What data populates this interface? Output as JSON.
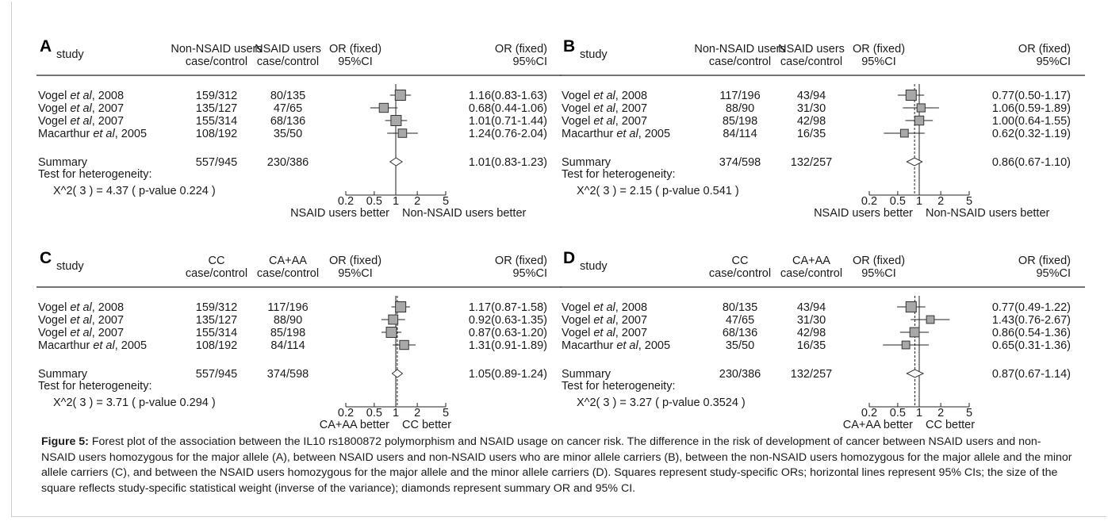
{
  "colors": {
    "box_fill": "#a8a8a8",
    "box_stroke": "#333333",
    "line": "#222222",
    "diamond_fill": "#ffffff"
  },
  "chart_data": [
    {
      "type": "forest",
      "panel": "A",
      "headers": {
        "study": "study",
        "col1a": "Non-NSAID users",
        "col1b": "case/control",
        "col2a": "NSAID users",
        "col2b": "case/control",
        "or_a": "OR (fixed)",
        "or_b": "95%CI",
        "ci_a": "OR (fixed)",
        "ci_b": "95%CI"
      },
      "rows": [
        {
          "study_pre": "Vogel ",
          "study_em": "et al",
          "study_post": ", 2008",
          "c1": "159/312",
          "c2": "80/135",
          "or": 1.16,
          "lo": 0.83,
          "hi": 1.63,
          "w": 1.0,
          "text": "1.16(0.83-1.63)"
        },
        {
          "study_pre": "Vogel ",
          "study_em": "et al",
          "study_post": ", 2007",
          "c1": "135/127",
          "c2": "47/65",
          "or": 0.68,
          "lo": 0.44,
          "hi": 1.06,
          "w": 0.8,
          "text": "0.68(0.44-1.06)"
        },
        {
          "study_pre": "Vogel ",
          "study_em": "et al",
          "study_post": ", 2007",
          "c1": "155/314",
          "c2": "68/136",
          "or": 1.01,
          "lo": 0.71,
          "hi": 1.44,
          "w": 1.0,
          "text": "1.01(0.71-1.44)"
        },
        {
          "study_pre": "Macarthur ",
          "study_em": "et al",
          "study_post": ", 2005",
          "c1": "108/192",
          "c2": "35/50",
          "or": 1.24,
          "lo": 0.76,
          "hi": 2.04,
          "w": 0.7,
          "text": "1.24(0.76-2.04)"
        }
      ],
      "summary": {
        "label": "Summary",
        "c1": "557/945",
        "c2": "230/386",
        "or": 1.01,
        "lo": 0.83,
        "hi": 1.23,
        "text": "1.01(0.83-1.23)"
      },
      "het_label": "Test for heterogeneity:",
      "het_stat": "X^2( 3 ) = 4.37 ( p-value 0.224 )",
      "x_ticks": [
        0.2,
        0.5,
        1,
        2,
        5
      ],
      "x_tick_labels": [
        "0.2",
        "0.5",
        "1",
        "2",
        "5"
      ],
      "x_scale": "log",
      "dashed_summary_line": false,
      "favors_left": "NSAID users better",
      "favors_right": "Non-NSAID users better"
    },
    {
      "type": "forest",
      "panel": "B",
      "headers": {
        "study": "study",
        "col1a": "Non-NSAID users",
        "col1b": "case/control",
        "col2a": "NSAID users",
        "col2b": "case/control",
        "or_a": "OR (fixed)",
        "or_b": "95%CI",
        "ci_a": "OR (fixed)",
        "ci_b": "95%CI"
      },
      "rows": [
        {
          "study_pre": "Vogel ",
          "study_em": "et al",
          "study_post": ", 2008",
          "c1": "117/196",
          "c2": "43/94",
          "or": 0.77,
          "lo": 0.5,
          "hi": 1.17,
          "w": 1.0,
          "text": "0.77(0.50-1.17)"
        },
        {
          "study_pre": "Vogel ",
          "study_em": "et al",
          "study_post": ", 2007",
          "c1": "88/90",
          "c2": "31/30",
          "or": 1.06,
          "lo": 0.59,
          "hi": 1.89,
          "w": 0.65,
          "text": "1.06(0.59-1.89)"
        },
        {
          "study_pre": "Vogel ",
          "study_em": "et al",
          "study_post": ", 2007",
          "c1": "85/198",
          "c2": "42/98",
          "or": 1.0,
          "lo": 0.64,
          "hi": 1.55,
          "w": 0.8,
          "text": "1.00(0.64-1.55)"
        },
        {
          "study_pre": "Macarthur ",
          "study_em": "et al",
          "study_post": ", 2005",
          "c1": "84/114",
          "c2": "16/35",
          "or": 0.62,
          "lo": 0.32,
          "hi": 1.19,
          "w": 0.6,
          "text": "0.62(0.32-1.19)"
        }
      ],
      "summary": {
        "label": "Summary",
        "c1": "374/598",
        "c2": "132/257",
        "or": 0.86,
        "lo": 0.67,
        "hi": 1.1,
        "text": "0.86(0.67-1.10)"
      },
      "het_label": "Test for heterogeneity:",
      "het_stat": "X^2( 3 ) = 2.15 ( p-value 0.541 )",
      "x_ticks": [
        0.2,
        0.5,
        1,
        2,
        5
      ],
      "x_tick_labels": [
        "0.2",
        "0.5",
        "1",
        "2",
        "5"
      ],
      "x_scale": "log",
      "dashed_summary_line": true,
      "favors_left": "NSAID users better",
      "favors_right": "Non-NSAID users better"
    },
    {
      "type": "forest",
      "panel": "C",
      "headers": {
        "study": "study",
        "col1a": "CC",
        "col1b": "case/control",
        "col2a": "CA+AA",
        "col2b": "case/control",
        "or_a": "OR (fixed)",
        "or_b": "95%CI",
        "ci_a": "OR (fixed)",
        "ci_b": "95%CI"
      },
      "rows": [
        {
          "study_pre": "Vogel ",
          "study_em": "et al",
          "study_post": ", 2008",
          "c1": "159/312",
          "c2": "117/196",
          "or": 1.17,
          "lo": 0.87,
          "hi": 1.58,
          "w": 1.0,
          "text": "1.17(0.87-1.58)"
        },
        {
          "study_pre": "Vogel ",
          "study_em": "et al",
          "study_post": ", 2007",
          "c1": "135/127",
          "c2": "88/90",
          "or": 0.92,
          "lo": 0.63,
          "hi": 1.35,
          "w": 0.85,
          "text": "0.92(0.63-1.35)"
        },
        {
          "study_pre": "Vogel ",
          "study_em": "et al",
          "study_post": ", 2007",
          "c1": "155/314",
          "c2": "85/198",
          "or": 0.87,
          "lo": 0.63,
          "hi": 1.2,
          "w": 1.0,
          "text": "0.87(0.63-1.20)"
        },
        {
          "study_pre": "Macarthur ",
          "study_em": "et al",
          "study_post": ", 2005",
          "c1": "108/192",
          "c2": "84/114",
          "or": 1.31,
          "lo": 0.91,
          "hi": 1.89,
          "w": 0.8,
          "text": "1.31(0.91-1.89)"
        }
      ],
      "summary": {
        "label": "Summary",
        "c1": "557/945",
        "c2": "374/598",
        "or": 1.05,
        "lo": 0.89,
        "hi": 1.24,
        "text": "1.05(0.89-1.24)"
      },
      "het_label": "Test for heterogeneity:",
      "het_stat": "X^2( 3 ) = 3.71 ( p-value 0.294 )",
      "x_ticks": [
        0.2,
        0.5,
        1,
        2,
        5
      ],
      "x_tick_labels": [
        "0.2",
        "0.5",
        "1",
        "2",
        "5"
      ],
      "x_scale": "log",
      "dashed_summary_line": true,
      "favors_left": "CA+AA better",
      "favors_right": "CC better"
    },
    {
      "type": "forest",
      "panel": "D",
      "headers": {
        "study": "study",
        "col1a": "CC",
        "col1b": "case/control",
        "col2a": "CA+AA",
        "col2b": "case/control",
        "or_a": "OR (fixed)",
        "or_b": "95%CI",
        "ci_a": "OR (fixed)",
        "ci_b": "95%CI"
      },
      "rows": [
        {
          "study_pre": "Vogel ",
          "study_em": "et al",
          "study_post": ", 2008",
          "c1": "80/135",
          "c2": "43/94",
          "or": 0.77,
          "lo": 0.49,
          "hi": 1.22,
          "w": 1.0,
          "text": "0.77(0.49-1.22)"
        },
        {
          "study_pre": "Vogel ",
          "study_em": "et al",
          "study_post": ", 2007",
          "c1": "47/65",
          "c2": "31/30",
          "or": 1.43,
          "lo": 0.76,
          "hi": 2.67,
          "w": 0.6,
          "text": "1.43(0.76-2.67)"
        },
        {
          "study_pre": "Vogel ",
          "study_em": "et al",
          "study_post": ", 2007",
          "c1": "68/136",
          "c2": "42/98",
          "or": 0.86,
          "lo": 0.54,
          "hi": 1.36,
          "w": 0.85,
          "text": "0.86(0.54-1.36)"
        },
        {
          "study_pre": "Macarthur ",
          "study_em": "et al",
          "study_post": ", 2005",
          "c1": "35/50",
          "c2": "16/35",
          "or": 0.65,
          "lo": 0.31,
          "hi": 1.36,
          "w": 0.6,
          "text": "0.65(0.31-1.36)"
        }
      ],
      "summary": {
        "label": "Summary",
        "c1": "230/386",
        "c2": "132/257",
        "or": 0.87,
        "lo": 0.67,
        "hi": 1.14,
        "text": "0.87(0.67-1.14)"
      },
      "het_label": "Test for heterogeneity:",
      "het_stat": "X^2( 3 ) = 3.27 ( p-value 0.3524 )",
      "x_ticks": [
        0.2,
        0.5,
        1,
        2,
        5
      ],
      "x_tick_labels": [
        "0.2",
        "0.5",
        "1",
        "2",
        "5"
      ],
      "x_scale": "log",
      "dashed_summary_line": true,
      "favors_left": "CA+AA better",
      "favors_right": "CC better"
    }
  ],
  "caption": {
    "label": "Figure 5:",
    "text": " Forest plot of the association between the IL10 rs1800872 polymorphism and NSAID usage on cancer risk. The difference in the risk of development of cancer between NSAID users and non-NSAID users homozygous for the major allele (A), between NSAID users and non-NSAID users who are minor allele carriers (B), between the non-NSAID users homozygous for the major allele and the minor allele carriers (C), and between the NSAID users homozygous for the major allele and the minor allele carriers (D). Squares represent study-specific ORs; horizontal lines represent 95% CIs; the size of the square reflects study-specific statistical weight (inverse of the variance); diamonds represent summary OR and 95% CI."
  }
}
